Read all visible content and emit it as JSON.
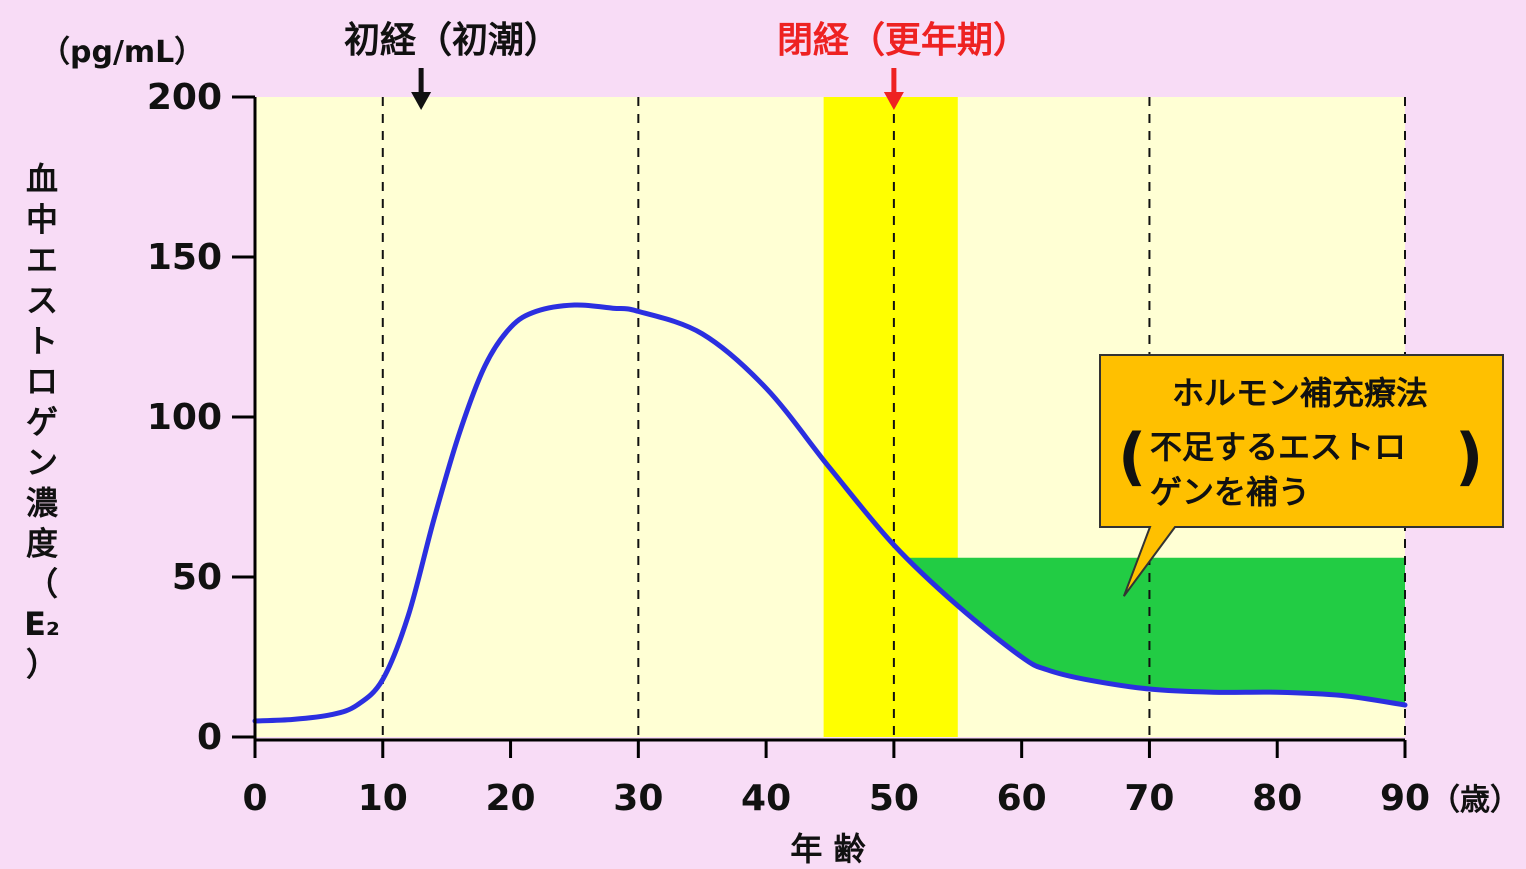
{
  "chart_data": {
    "type": "line",
    "title": "",
    "xlabel": "年 齢",
    "x_unit": "（歳）",
    "ylabel_chars": [
      "血",
      "中",
      "エ",
      "ス",
      "ト",
      "ロ",
      "ゲ",
      "ン",
      "濃",
      "度",
      "（",
      "E₂",
      "）"
    ],
    "y_unit": "（pg/mL）",
    "xlim": [
      0,
      90
    ],
    "ylim": [
      0,
      200
    ],
    "x_ticks": [
      0,
      10,
      20,
      30,
      40,
      50,
      60,
      70,
      80,
      90
    ],
    "y_ticks": [
      0,
      50,
      100,
      150,
      200
    ],
    "vertical_dashed_lines_at": [
      10,
      30,
      50,
      70,
      90
    ],
    "series": [
      {
        "color": "#2b2fe0",
        "x": [
          0,
          3,
          6,
          8,
          10,
          12,
          14,
          16,
          18,
          20,
          22,
          25,
          28,
          30,
          35,
          40,
          45,
          50,
          55,
          60,
          62,
          65,
          70,
          75,
          80,
          85,
          90
        ],
        "y": [
          5,
          5.5,
          7,
          10,
          18,
          38,
          68,
          95,
          116,
          128,
          133,
          135,
          134,
          133,
          126,
          109,
          84,
          60,
          41,
          25,
          21,
          18,
          15,
          14,
          14,
          13,
          10
        ]
      }
    ],
    "menopause_band": {
      "x_range": [
        44.5,
        55
      ],
      "color": "#ffff00"
    },
    "hrt_region": {
      "x_range": [
        51,
        90
      ],
      "upper_y": 56,
      "color": "#22cc44"
    },
    "annotations": [
      {
        "label": "初経（初潮）",
        "x": 13,
        "color": "#111111"
      },
      {
        "label": "閉経（更年期）",
        "x": 50,
        "color": "#ee2222"
      }
    ],
    "callout": {
      "line1": "ホルモン補充療法",
      "line2": "不足するエストロ",
      "line3": "ゲンを補う",
      "fill": "#ffc000",
      "pointer_to": [
        68,
        44
      ]
    },
    "colors": {
      "page_bg": "#f8dcf6",
      "plot_bg": "#ffffd4"
    }
  }
}
